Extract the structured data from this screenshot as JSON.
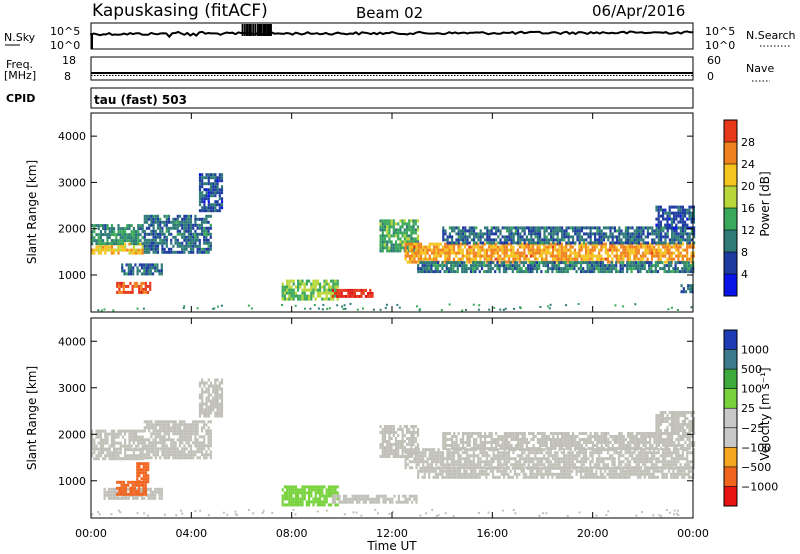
{
  "header": {
    "station": "Kapuskasing (fitACF)",
    "beam": "Beam 02",
    "date": "06/Apr/2016"
  },
  "summary_panels": {
    "nsky_label": "N.Sky",
    "nsky_ticks": [
      "10^5",
      "10^0"
    ],
    "nsearch_label": "N.Search",
    "nsearch_ticks": [
      "10^5",
      "10^0"
    ],
    "freq_label": "Freq.",
    "freq_unit": "[MHz]",
    "freq_ticks": [
      "18",
      "8"
    ],
    "nave_label": "Nave",
    "nave_ticks": [
      "60",
      "0"
    ],
    "cpid_label": "CPID",
    "cpid_text": "tau (fast) 503"
  },
  "colors": {
    "power_scale": [
      "#0a14e6",
      "#1e3ca0",
      "#2e7a78",
      "#3aa85a",
      "#b8d63a",
      "#f5c41e",
      "#f0821e",
      "#e8381a",
      "#e01414"
    ],
    "velocity_scale": [
      "#e81414",
      "#f0641e",
      "#f5a61e",
      "#f5d23c",
      "#c8c8c8",
      "#78d23c",
      "#3caa3c",
      "#3c7a8c",
      "#1e3cb4"
    ],
    "ground_scatter": "#c0c0b8"
  },
  "chart_data": [
    {
      "type": "heatmap",
      "name": "power",
      "ylabel": "Slant Range [km]",
      "yticks": [
        "1000",
        "2000",
        "3000",
        "4000"
      ],
      "ylim": [
        200,
        4500
      ],
      "xlim": [
        0,
        24
      ],
      "colorbar": {
        "label": "Power [dB]",
        "ticks": [
          "4",
          "8",
          "12",
          "16",
          "20",
          "24",
          "28"
        ],
        "range": [
          0,
          32
        ]
      },
      "regions": [
        {
          "x": [
            0.0,
            2.1
          ],
          "y": [
            1450,
            1700
          ],
          "v": 20
        },
        {
          "x": [
            0.0,
            2.1
          ],
          "y": [
            1700,
            2100
          ],
          "v": 10
        },
        {
          "x": [
            1.0,
            2.4
          ],
          "y": [
            650,
            850
          ],
          "v": 26
        },
        {
          "x": [
            1.2,
            2.8
          ],
          "y": [
            1000,
            1250
          ],
          "v": 8
        },
        {
          "x": [
            2.1,
            4.8
          ],
          "y": [
            1500,
            2300
          ],
          "v": 8
        },
        {
          "x": [
            4.3,
            5.2
          ],
          "y": [
            2400,
            3200
          ],
          "v": 6
        },
        {
          "x": [
            7.6,
            9.8
          ],
          "y": [
            500,
            900
          ],
          "v": 14
        },
        {
          "x": [
            9.6,
            11.2
          ],
          "y": [
            550,
            700
          ],
          "v": 28
        },
        {
          "x": [
            11.5,
            13.0
          ],
          "y": [
            1550,
            2200
          ],
          "v": 12
        },
        {
          "x": [
            12.5,
            24.0
          ],
          "y": [
            1300,
            1700
          ],
          "v": 22
        },
        {
          "x": [
            13.0,
            24.0
          ],
          "y": [
            1100,
            1300
          ],
          "v": 9
        },
        {
          "x": [
            14.0,
            24.0
          ],
          "y": [
            1700,
            2050
          ],
          "v": 8
        },
        {
          "x": [
            22.5,
            24.0
          ],
          "y": [
            2000,
            2500
          ],
          "v": 6
        },
        {
          "x": [
            23.5,
            24.0
          ],
          "y": [
            650,
            800
          ],
          "v": 8
        }
      ]
    },
    {
      "type": "heatmap",
      "name": "velocity",
      "xlabel": "Time UT",
      "ylabel": "Slant Range [km]",
      "xticks": [
        "00:00",
        "04:00",
        "08:00",
        "12:00",
        "16:00",
        "20:00",
        "00:00"
      ],
      "yticks": [
        "1000",
        "2000",
        "3000",
        "4000"
      ],
      "ylim": [
        200,
        4500
      ],
      "xlim": [
        0,
        24
      ],
      "colorbar": {
        "label": "Velocity [m s⁻¹]",
        "ticks": [
          "1000",
          "500",
          "100",
          "25",
          "−25",
          "−100",
          "−500",
          "−1000"
        ]
      },
      "regions": [
        {
          "x": [
            0.0,
            2.1
          ],
          "y": [
            1450,
            1700
          ],
          "v": 0
        },
        {
          "x": [
            0.0,
            2.1
          ],
          "y": [
            1700,
            2100
          ],
          "v": 0
        },
        {
          "x": [
            0.5,
            2.8
          ],
          "y": [
            650,
            850
          ],
          "v": 0
        },
        {
          "x": [
            1.0,
            2.2
          ],
          "y": [
            700,
            1000
          ],
          "v": -300
        },
        {
          "x": [
            1.8,
            2.3
          ],
          "y": [
            1000,
            1400
          ],
          "v": -600
        },
        {
          "x": [
            2.1,
            4.8
          ],
          "y": [
            1500,
            2300
          ],
          "v": 0
        },
        {
          "x": [
            4.3,
            5.2
          ],
          "y": [
            2400,
            3200
          ],
          "v": 0
        },
        {
          "x": [
            7.6,
            9.8
          ],
          "y": [
            500,
            900
          ],
          "v": 80
        },
        {
          "x": [
            9.6,
            13.0
          ],
          "y": [
            550,
            700
          ],
          "v": 0
        },
        {
          "x": [
            11.5,
            13.0
          ],
          "y": [
            1550,
            2200
          ],
          "v": 0
        },
        {
          "x": [
            12.5,
            24.0
          ],
          "y": [
            1300,
            1700
          ],
          "v": 0
        },
        {
          "x": [
            13.0,
            24.0
          ],
          "y": [
            1100,
            1300
          ],
          "v": 0
        },
        {
          "x": [
            14.0,
            24.0
          ],
          "y": [
            1700,
            2050
          ],
          "v": 0
        },
        {
          "x": [
            22.5,
            24.0
          ],
          "y": [
            2000,
            2500
          ],
          "v": 0
        }
      ]
    }
  ]
}
